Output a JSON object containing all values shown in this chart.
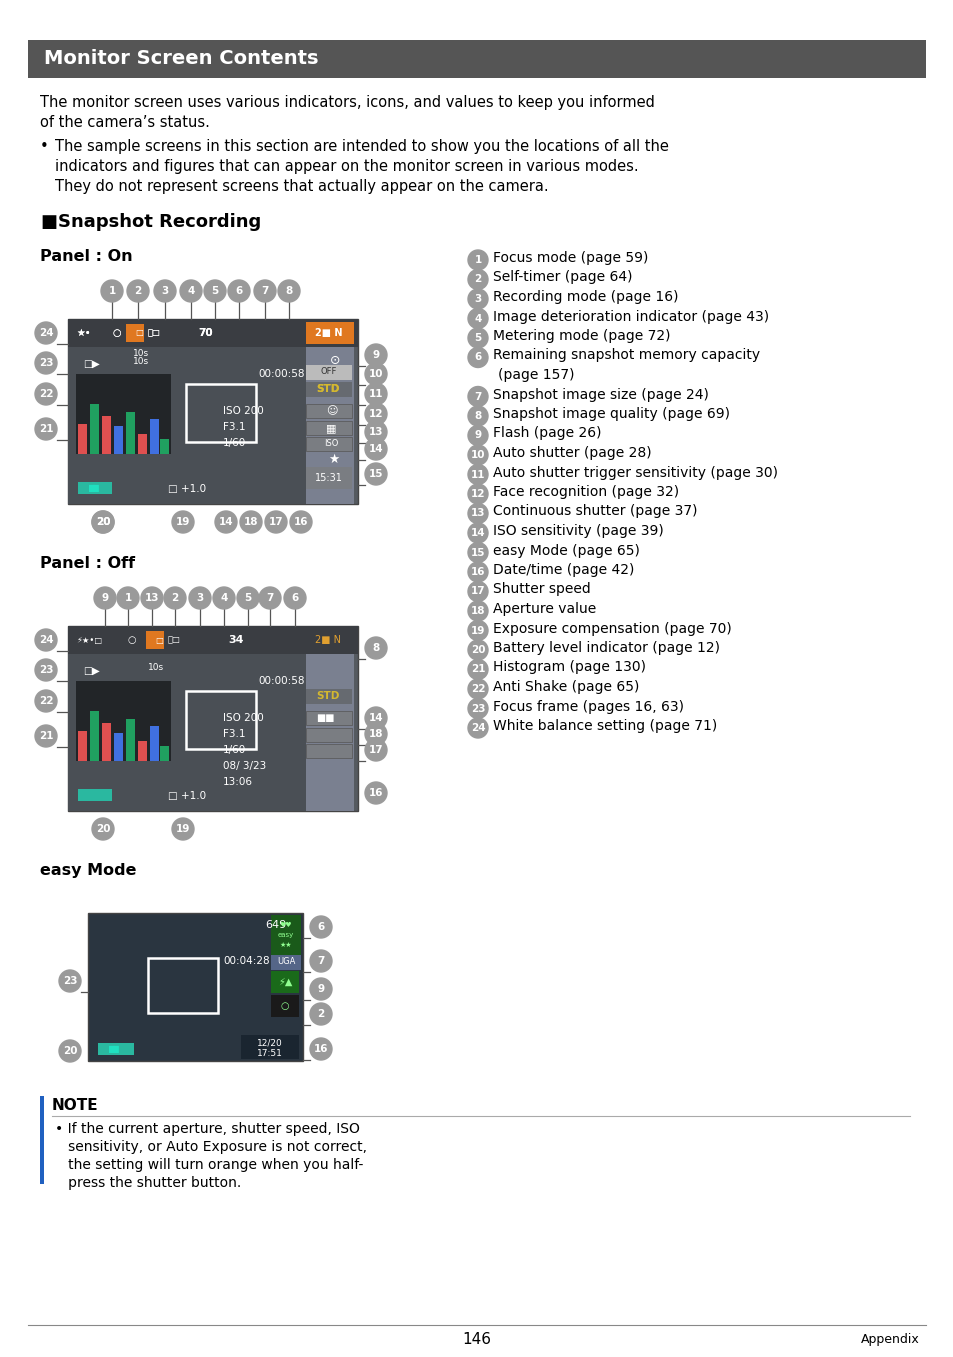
{
  "title": "Monitor Screen Contents",
  "title_bg": "#555555",
  "title_color": "#ffffff",
  "bg_color": "#ffffff",
  "text_color": "#000000",
  "page_number": "146",
  "appendix_label": "Appendix",
  "items": [
    "1|Focus mode (page 59)",
    "2|Self-timer (page 64)",
    "3|Recording mode (page 16)",
    "4|Image deterioration indicator (page 43)",
    "5|Metering mode (page 72)",
    "6|Remaining snapshot memory capacity",
    "6b|(page 157)",
    "7|Snapshot image size (page 24)",
    "8|Snapshot image quality (page 69)",
    "9|Flash (page 26)",
    "10|Auto shutter (page 28)",
    "11|Auto shutter trigger sensitivity (page 30)",
    "12|Face recognition (page 32)",
    "13|Continuous shutter (page 37)",
    "14|ISO sensitivity (page 39)",
    "15|easy Mode (page 65)",
    "16|Date/time (page 42)",
    "17|Shutter speed",
    "18|Aperture value",
    "19|Exposure compensation (page 70)",
    "20|Battery level indicator (page 12)",
    "21|Histogram (page 130)",
    "22|Anti Shake (page 65)",
    "23|Focus frame (pages 16, 63)",
    "24|White balance setting (page 71)"
  ],
  "camera_bg": "#555a60",
  "camera_dark": "#3a3d42",
  "camera_side": "#7a8090",
  "orange": "#e07820",
  "teal": "#2ab8a0",
  "yellow": "#d4b830",
  "note_bar": "#2060c0"
}
